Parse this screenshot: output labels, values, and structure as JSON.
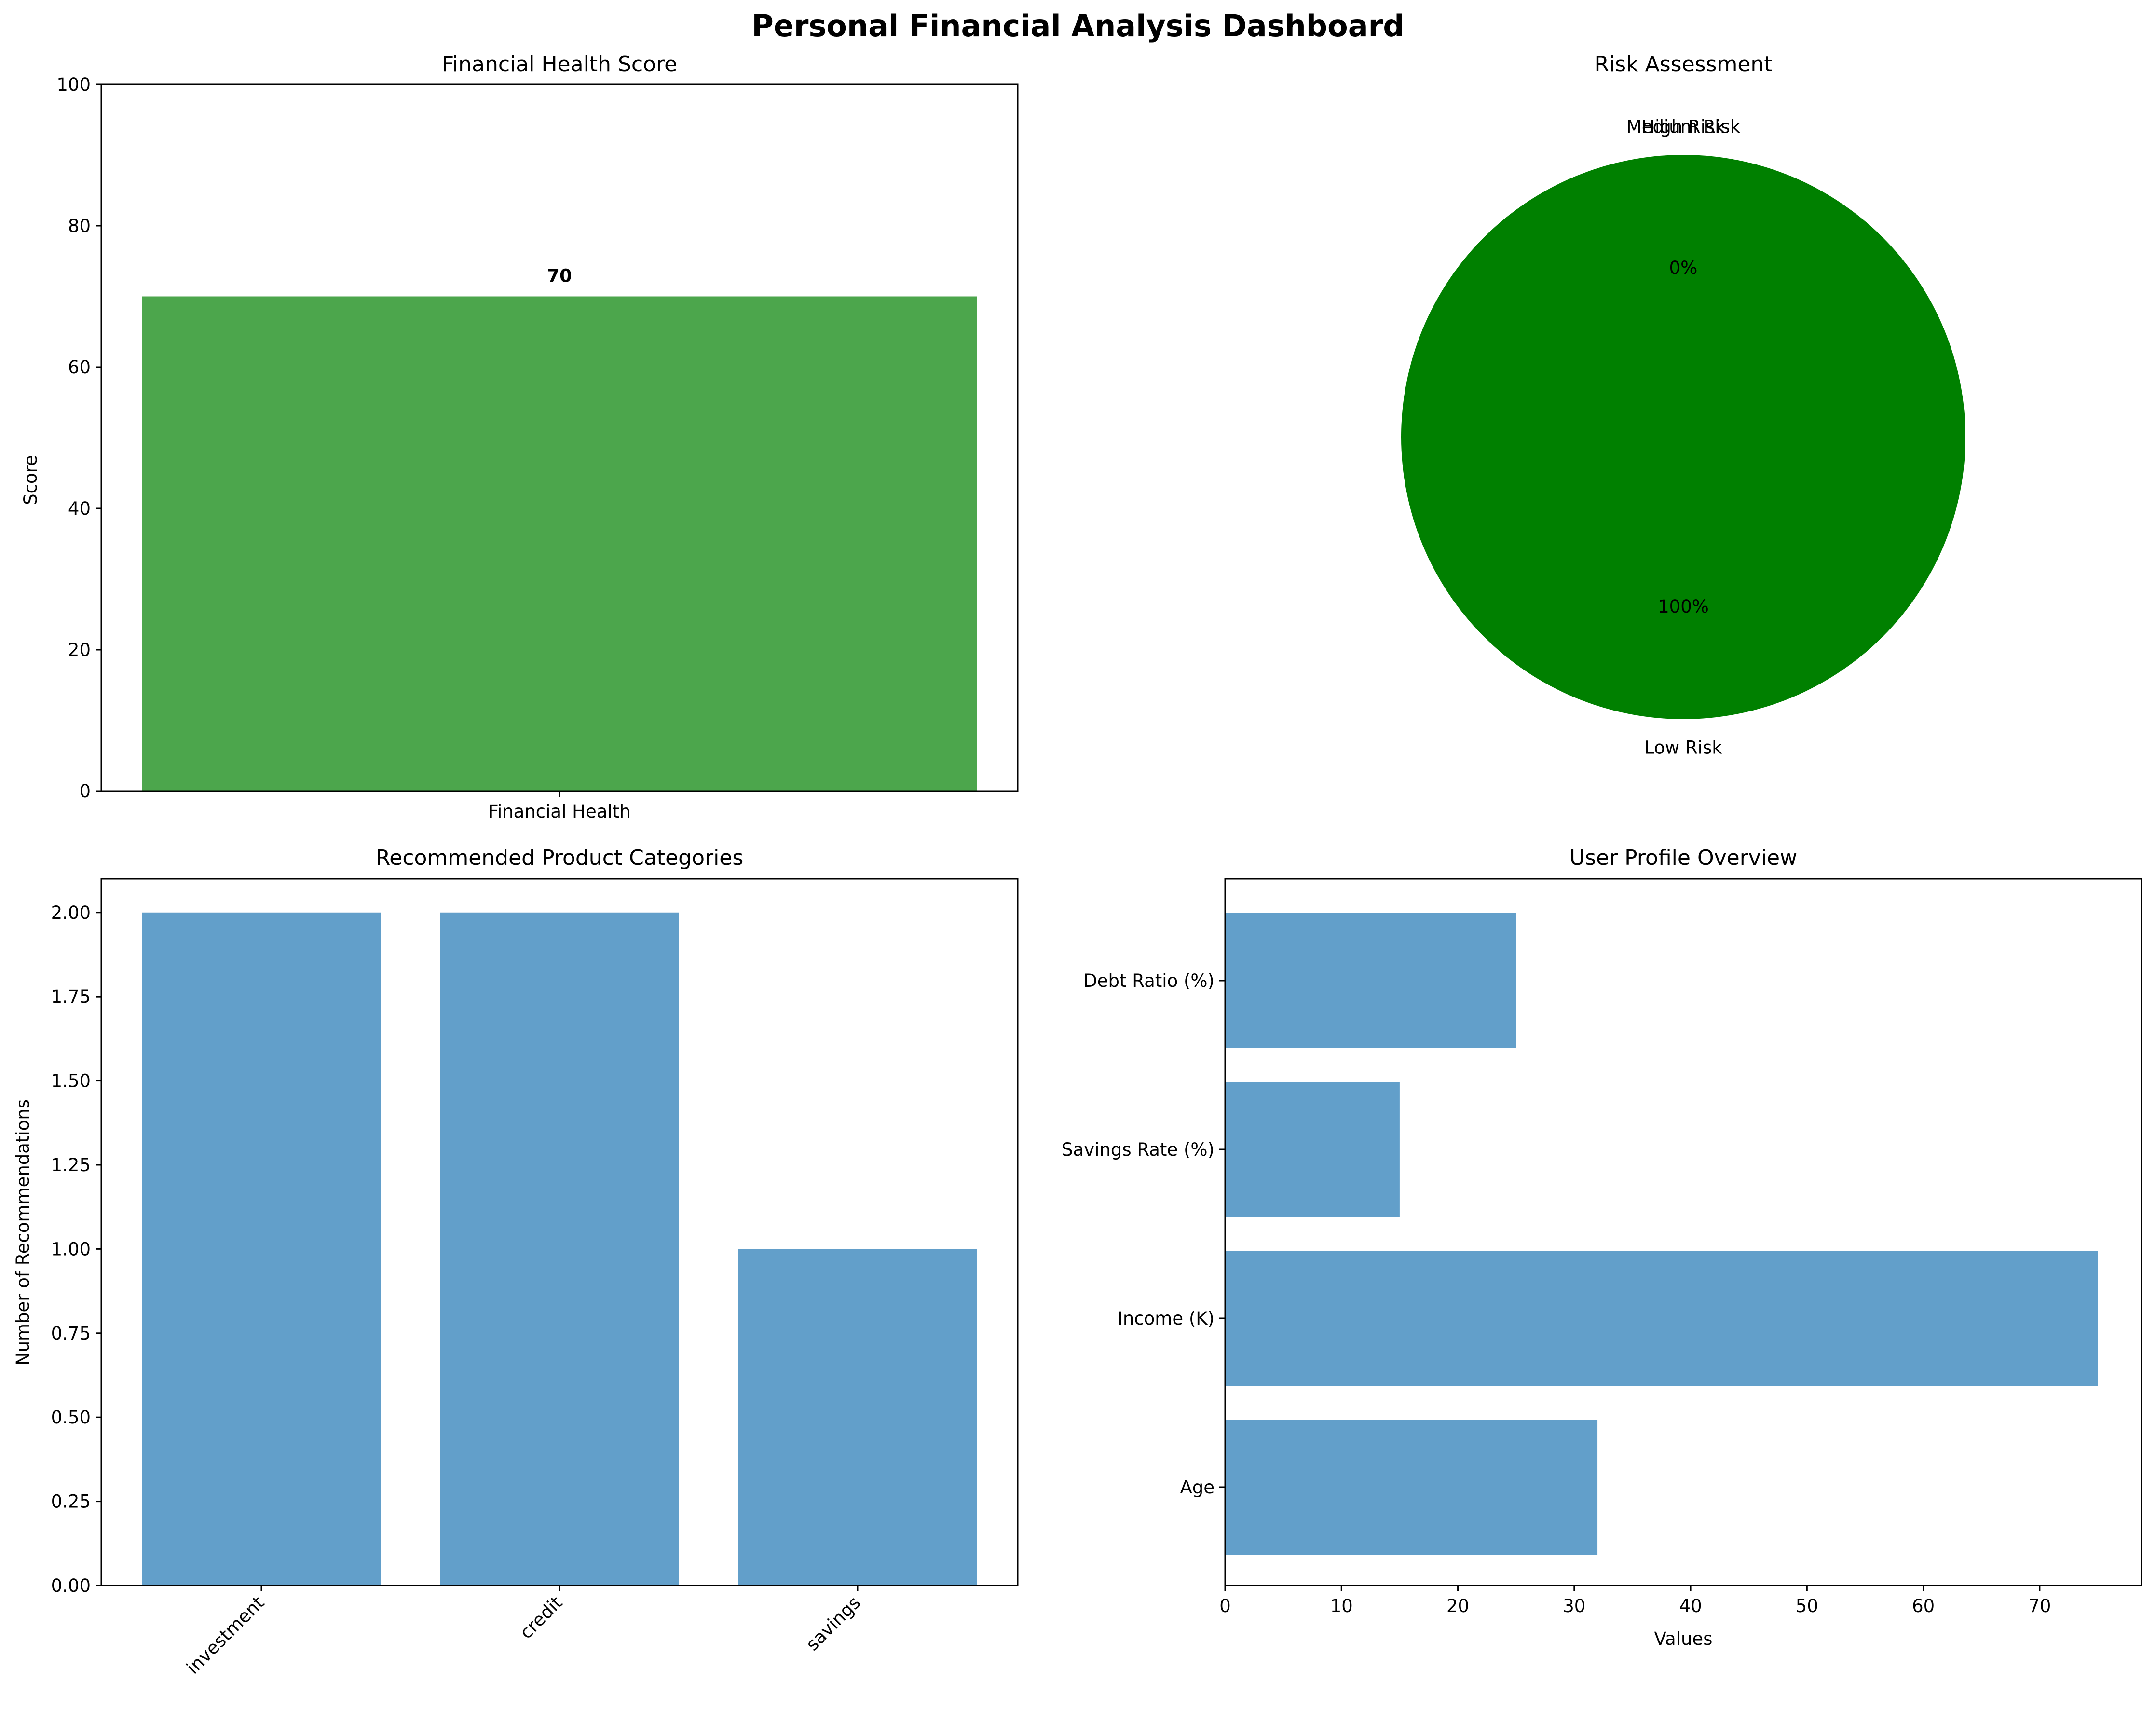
{
  "title": "Personal Financial Analysis Dashboard",
  "colors": {
    "green_bar": "#4ca64c",
    "blue_bar": "#629fca",
    "pie_low": "#008000"
  },
  "chart_data": [
    {
      "type": "bar",
      "title": "Financial Health Score",
      "categories": [
        "Financial Health"
      ],
      "values": [
        70
      ],
      "data_labels": [
        "70"
      ],
      "xlabel": "",
      "ylabel": "Score",
      "ylim": [
        0,
        100
      ],
      "yticks": [
        "0",
        "20",
        "40",
        "60",
        "80",
        "100"
      ],
      "grid": false
    },
    {
      "type": "pie",
      "title": "Risk Assessment",
      "labels": [
        "Low Risk",
        "Medium Risk",
        "High Risk"
      ],
      "values": [
        100,
        0,
        0
      ],
      "pct_labels": [
        "100%",
        "0%",
        "0%"
      ]
    },
    {
      "type": "bar",
      "title": "Recommended Product Categories",
      "categories": [
        "investment",
        "credit",
        "savings"
      ],
      "values": [
        2,
        2,
        1
      ],
      "xlabel": "",
      "ylabel": "Number of Recommendations",
      "ylim": [
        0,
        2.1
      ],
      "yticks": [
        "0.00",
        "0.25",
        "0.50",
        "0.75",
        "1.00",
        "1.25",
        "1.50",
        "1.75",
        "2.00"
      ],
      "grid": false
    },
    {
      "type": "bar",
      "orientation": "horizontal",
      "title": "User Profile Overview",
      "categories": [
        "Age",
        "Income (K)",
        "Savings Rate (%)",
        "Debt Ratio (%)"
      ],
      "values": [
        32,
        75,
        15,
        25
      ],
      "xlabel": "Values",
      "ylabel": "",
      "xlim": [
        0,
        78.75
      ],
      "xticks": [
        "0",
        "10",
        "20",
        "30",
        "40",
        "50",
        "60",
        "70"
      ],
      "grid": false
    }
  ]
}
